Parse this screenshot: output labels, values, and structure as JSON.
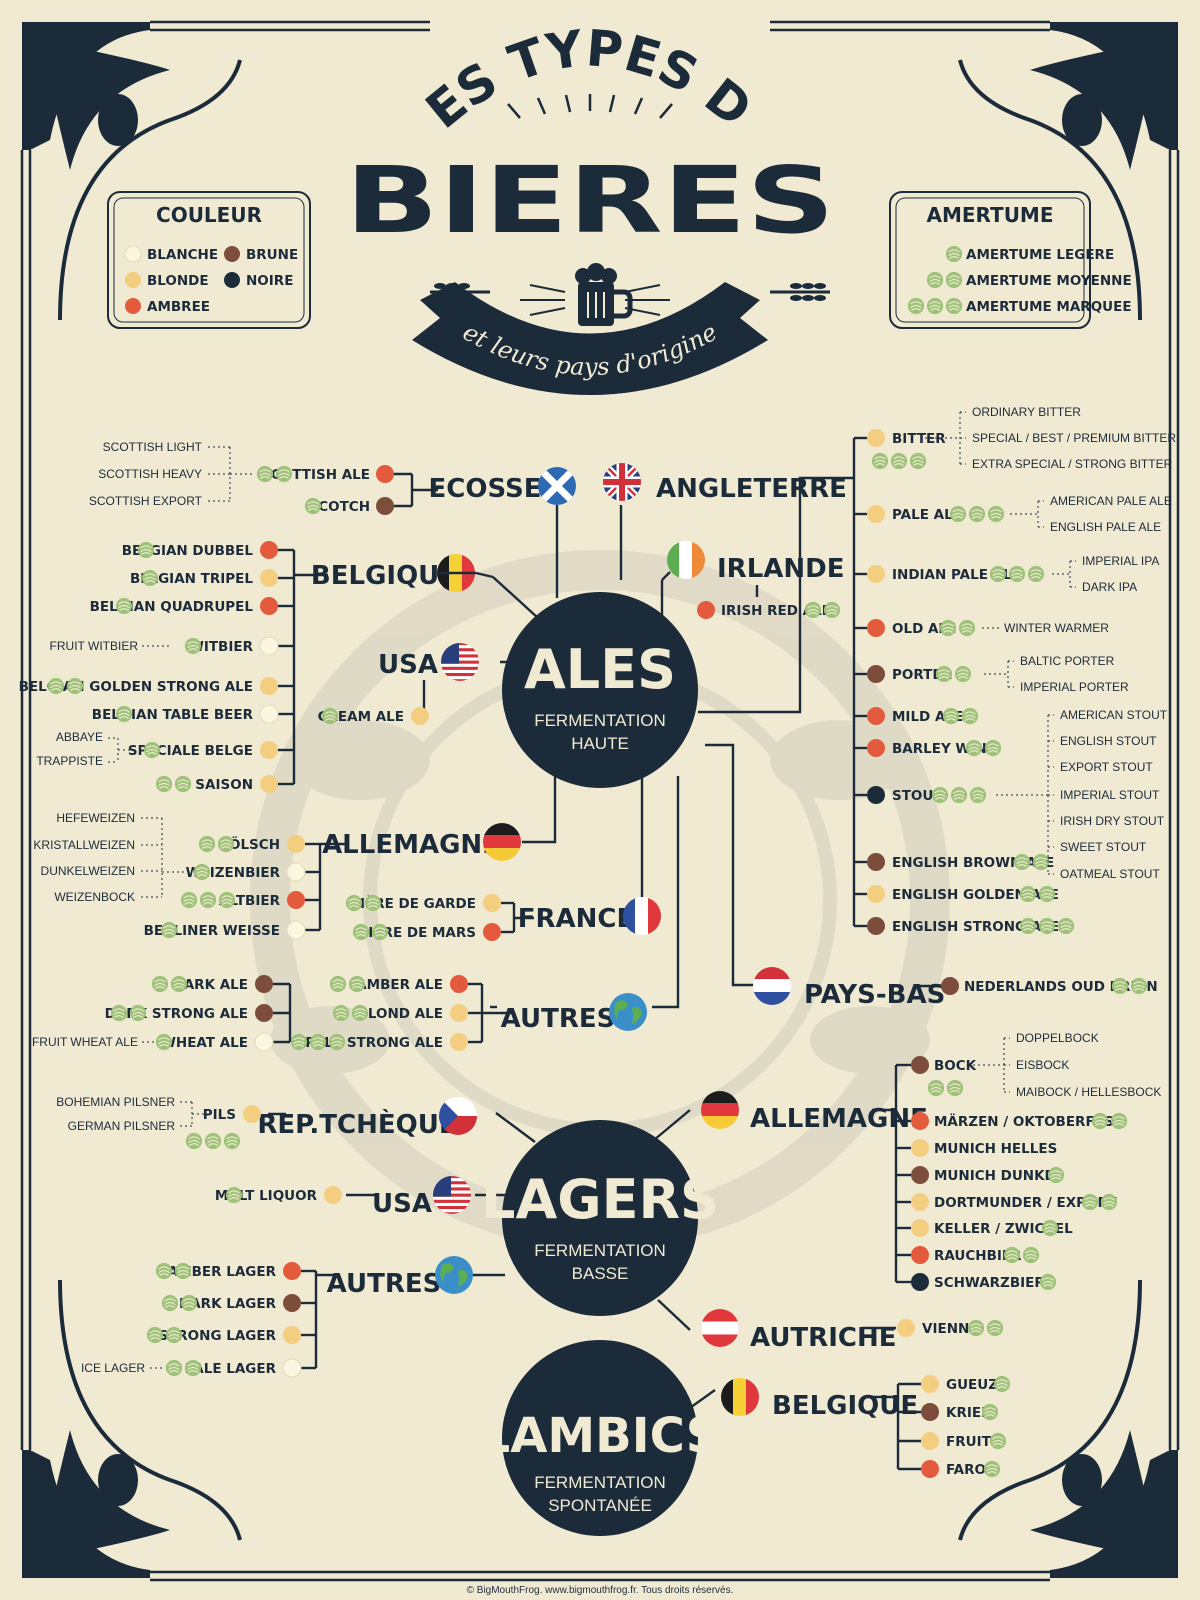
{
  "header": {
    "kicker": "LES TYPES DE",
    "title": "BIERES",
    "ribbon": "et leurs pays d'origine"
  },
  "legend_color": {
    "title": "COULEUR",
    "items": [
      {
        "label": "BLANCHE",
        "color": "#fbf6df"
      },
      {
        "label": "BRUNE",
        "color": "#7d4d3b"
      },
      {
        "label": "BLONDE",
        "color": "#f3cd80"
      },
      {
        "label": "NOIRE",
        "color": "#1c2b3a"
      },
      {
        "label": "AMBREE",
        "color": "#e45a3d"
      }
    ]
  },
  "legend_bitterness": {
    "title": "AMERTUME",
    "items": [
      {
        "label": "AMERTUME LEGERE",
        "hops": 1
      },
      {
        "label": "AMERTUME MOYENNE",
        "hops": 2
      },
      {
        "label": "AMERTUME MARQUEE",
        "hops": 3
      }
    ]
  },
  "colors": {
    "navy": "#1c2b3a",
    "cream": "#f1ead3",
    "hop": "#9fc27a",
    "blanche": "#fbf6df",
    "blonde": "#f3cd80",
    "ambree": "#e45a3d",
    "brune": "#7d4d3b",
    "noire": "#1c2b3a"
  },
  "hubs": [
    {
      "name": "ALES",
      "sub1": "FERMENTATION",
      "sub2": "HAUTE"
    },
    {
      "name": "LAGERS",
      "sub1": "FERMENTATION",
      "sub2": "BASSE"
    },
    {
      "name": "LAMBICS",
      "sub1": "FERMENTATION",
      "sub2": "SPONTANÉE"
    }
  ],
  "countries": [
    {
      "name": "ECOSSE",
      "flag": "scotland",
      "beers": [
        {
          "name": "SCOTTISH ALE",
          "color": "ambree",
          "hops": 2
        },
        {
          "name": "SCOTCH",
          "color": "brune",
          "hops": 1
        }
      ],
      "varieties": [
        "SCOTTISH LIGHT",
        "SCOTTISH HEAVY",
        "SCOTTISH EXPORT"
      ]
    },
    {
      "name": "ANGLETERRE",
      "flag": "uk",
      "beers": [
        {
          "name": "BITTER",
          "color": "blonde",
          "hops": 3,
          "varieties": [
            "ORDINARY BITTER",
            "SPECIAL / BEST / PREMIUM BITTER",
            "EXTRA SPECIAL / STRONG BITTER"
          ]
        },
        {
          "name": "PALE ALE",
          "color": "blonde",
          "hops": 3,
          "varieties": [
            "AMERICAN PALE ALE",
            "ENGLISH PALE ALE"
          ]
        },
        {
          "name": "INDIAN PALE ALE",
          "color": "blonde",
          "hops": 3,
          "varieties": [
            "IMPERIAL IPA",
            "DARK IPA"
          ]
        },
        {
          "name": "OLD ALE",
          "color": "ambree",
          "hops": 2,
          "varieties": [
            "WINTER WARMER"
          ]
        },
        {
          "name": "PORTER",
          "color": "brune",
          "hops": 2,
          "varieties": [
            "BALTIC PORTER",
            "IMPERIAL PORTER"
          ]
        },
        {
          "name": "MILD ALE",
          "color": "ambree",
          "hops": 2
        },
        {
          "name": "BARLEY WINE",
          "color": "ambree",
          "hops": 2
        },
        {
          "name": "STOUT",
          "color": "noire",
          "hops": 3,
          "varieties": [
            "AMERICAN STOUT",
            "ENGLISH STOUT",
            "EXPORT STOUT",
            "IMPERIAL STOUT",
            "IRISH DRY STOUT",
            "SWEET STOUT",
            "OATMEAL STOUT"
          ]
        },
        {
          "name": "ENGLISH BROWN ALE",
          "color": "brune",
          "hops": 2
        },
        {
          "name": "ENGLISH GOLDEN ALE",
          "color": "blonde",
          "hops": 2
        },
        {
          "name": "ENGLISH STRONG ALE",
          "color": "brune",
          "hops": 3
        }
      ]
    },
    {
      "name": "IRLANDE",
      "flag": "ireland",
      "beers": [
        {
          "name": "IRISH RED ALE",
          "color": "ambree",
          "hops": 2
        }
      ]
    },
    {
      "name": "BELGIQUE",
      "flag": "belgium",
      "beers": [
        {
          "name": "BELGIAN DUBBEL",
          "color": "ambree",
          "hops": 1
        },
        {
          "name": "BELGIAN TRIPEL",
          "color": "blonde",
          "hops": 1
        },
        {
          "name": "BELGIAN QUADRUPEL",
          "color": "ambree",
          "hops": 1
        },
        {
          "name": "WITBIER",
          "color": "blanche",
          "hops": 1,
          "varieties": [
            "FRUIT WITBIER"
          ]
        },
        {
          "name": "BELGIAN GOLDEN STRONG ALE",
          "color": "blonde",
          "hops": 2
        },
        {
          "name": "BELGIAN TABLE BEER",
          "color": "blanche",
          "hops": 1
        },
        {
          "name": "SPÉCIALE BELGE",
          "color": "blonde",
          "hops": 1,
          "varieties": [
            "ABBAYE",
            "TRAPPISTE"
          ]
        },
        {
          "name": "SAISON",
          "color": "blonde",
          "hops": 2
        }
      ]
    },
    {
      "name": "USA",
      "flag": "usa",
      "beers": [
        {
          "name": "CREAM ALE",
          "color": "blonde",
          "hops": 1
        }
      ]
    },
    {
      "name": "ALLEMAGNE",
      "flag": "germany",
      "beers": [
        {
          "name": "KÖLSCH",
          "color": "blonde",
          "hops": 2
        },
        {
          "name": "WEIZENBIER",
          "color": "blanche",
          "hops": 1
        },
        {
          "name": "ALTBIER",
          "color": "ambree",
          "hops": 3
        },
        {
          "name": "BERLINER WEISSE",
          "color": "blanche",
          "hops": 1
        }
      ],
      "varieties": [
        "HEFEWEIZEN",
        "KRISTALLWEIZEN",
        "DUNKELWEIZEN",
        "WEIZENBOCK"
      ]
    },
    {
      "name": "FRANCE",
      "flag": "france",
      "beers": [
        {
          "name": "BIÈRE DE GARDE",
          "color": "blonde",
          "hops": 2
        },
        {
          "name": "BIÈRE DE MARS",
          "color": "ambree",
          "hops": 2
        }
      ]
    },
    {
      "name": "PAYS-BAS",
      "flag": "netherlands",
      "beers": [
        {
          "name": "NEDERLANDS OUD BRUIN",
          "color": "brune",
          "hops": 2
        }
      ]
    },
    {
      "name": "AUTRES",
      "flag": "globe",
      "beers": [
        {
          "name": "DARK ALE",
          "color": "brune",
          "hops": 2
        },
        {
          "name": "DARK STRONG ALE",
          "color": "brune",
          "hops": 2
        },
        {
          "name": "WHEAT ALE",
          "color": "blanche",
          "hops": 1,
          "varieties": [
            "FRUIT WHEAT ALE"
          ]
        }
      ]
    },
    {
      "name": "AUTRES",
      "flag": "globe",
      "beers": [
        {
          "name": "AMBER ALE",
          "color": "ambree",
          "hops": 2
        },
        {
          "name": "BLOND ALE",
          "color": "blonde",
          "hops": 2
        },
        {
          "name": "PALE STRONG ALE",
          "color": "blonde",
          "hops": 3
        }
      ]
    },
    {
      "name": "REP.TCHÈQUE",
      "flag": "czech",
      "beers": [
        {
          "name": "PILS",
          "color": "blonde",
          "hops": 3,
          "varieties": [
            "BOHEMIAN PILSNER",
            "GERMAN PILSNER"
          ]
        }
      ]
    },
    {
      "name": "USA",
      "flag": "usa",
      "beers": [
        {
          "name": "MALT LIQUOR",
          "color": "blonde",
          "hops": 1
        }
      ]
    },
    {
      "name": "AUTRES",
      "flag": "globe",
      "beers": [
        {
          "name": "AMBER LAGER",
          "color": "ambree",
          "hops": 2
        },
        {
          "name": "DARK LAGER",
          "color": "brune",
          "hops": 2
        },
        {
          "name": "STRONG LAGER",
          "color": "blonde",
          "hops": 2
        },
        {
          "name": "PALE LAGER",
          "color": "blanche",
          "hops": 2,
          "varieties": [
            "ICE LAGER"
          ]
        }
      ]
    },
    {
      "name": "ALLEMAGNE",
      "flag": "germany",
      "beers": [
        {
          "name": "BOCK",
          "color": "brune",
          "hops": 2,
          "varieties": [
            "DOPPELBOCK",
            "EISBOCK",
            "MAIBOCK / HELLESBOCK"
          ]
        },
        {
          "name": "MÄRZEN / OKTOBERFEST",
          "color": "ambree",
          "hops": 2
        },
        {
          "name": "MUNICH HELLES",
          "color": "blonde",
          "hops": 0
        },
        {
          "name": "MUNICH DUNKEL",
          "color": "brune",
          "hops": 1
        },
        {
          "name": "DORTMUNDER / EXPORT",
          "color": "blonde",
          "hops": 2
        },
        {
          "name": "KELLER / ZWICKEL",
          "color": "blonde",
          "hops": 1
        },
        {
          "name": "RAUCHBIER",
          "color": "ambree",
          "hops": 2
        },
        {
          "name": "SCHWARZBIER",
          "color": "noire",
          "hops": 1
        }
      ]
    },
    {
      "name": "AUTRICHE",
      "flag": "austria",
      "beers": [
        {
          "name": "VIENNA",
          "color": "blonde",
          "hops": 2
        }
      ]
    },
    {
      "name": "BELGIQUE",
      "flag": "belgium",
      "beers": [
        {
          "name": "GUEUZE",
          "color": "blonde",
          "hops": 1
        },
        {
          "name": "KRIEK",
          "color": "brune",
          "hops": 1
        },
        {
          "name": "FRUITS",
          "color": "blonde",
          "hops": 1
        },
        {
          "name": "FARO",
          "color": "ambree",
          "hops": 1
        }
      ]
    }
  ],
  "footer": "© BigMouthFrog. www.bigmouthfrog.fr. Tous droits réservés."
}
